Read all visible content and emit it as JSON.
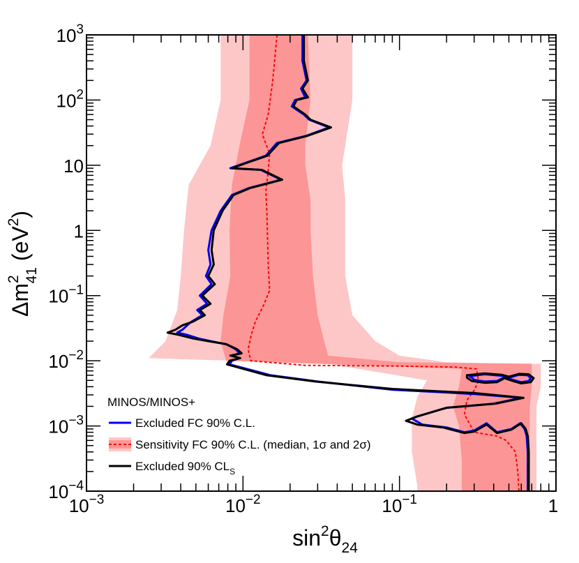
{
  "chart_data": {
    "type": "line",
    "x_scale": "log",
    "y_scale": "log",
    "xlim": [
      0.001,
      1
    ],
    "ylim": [
      0.0001,
      1000
    ],
    "xlabel": {
      "base": "sin",
      "sup": "2",
      "mid": "θ",
      "sub": "24"
    },
    "ylabel": {
      "pre": "Δm",
      "sup": "2",
      "sub": "41",
      "post1": " (eV",
      "sup2": "2",
      "post2": ")"
    },
    "x_ticks": [
      {
        "value": 0.001,
        "base": "10",
        "exp": "−3"
      },
      {
        "value": 0.01,
        "base": "10",
        "exp": "−2"
      },
      {
        "value": 0.1,
        "base": "10",
        "exp": "−1"
      },
      {
        "value": 1,
        "base": "1",
        "exp": ""
      }
    ],
    "y_ticks": [
      {
        "value": 0.0001,
        "base": "10",
        "exp": "−4"
      },
      {
        "value": 0.001,
        "base": "10",
        "exp": "−3"
      },
      {
        "value": 0.01,
        "base": "10",
        "exp": "−2"
      },
      {
        "value": 0.1,
        "base": "10",
        "exp": "−1"
      },
      {
        "value": 1,
        "base": "1",
        "exp": ""
      },
      {
        "value": 10,
        "base": "10",
        "exp": ""
      },
      {
        "value": 100,
        "base": "10",
        "exp": "2"
      },
      {
        "value": 1000,
        "base": "10",
        "exp": "3"
      }
    ],
    "colors": {
      "band2": "#fdc7c7",
      "band1": "#fc9595",
      "median": "#ff0000",
      "fc": "#0000ee",
      "cls": "#000000"
    },
    "legend": {
      "title": "MINOS/MINOS+",
      "entries": [
        {
          "key": "fc",
          "label": "Excluded FC 90% C.L."
        },
        {
          "key": "sens",
          "label": "Sensitivity FC 90% C.L. (median, 1σ and 2σ)"
        },
        {
          "key": "cls",
          "label": "Excluded 90% CL",
          "sub": "S"
        }
      ]
    },
    "series": [
      {
        "name": "Sensitivity 2σ band",
        "type": "band",
        "color_key": "band2",
        "lower": [
          [
            0.0072,
            1000
          ],
          [
            0.0072,
            100
          ],
          [
            0.0062,
            20
          ],
          [
            0.0045,
            5
          ],
          [
            0.0042,
            1
          ],
          [
            0.004,
            0.2
          ],
          [
            0.0038,
            0.06
          ],
          [
            0.0032,
            0.02
          ],
          [
            0.0025,
            0.011
          ],
          [
            0.035,
            0.009
          ],
          [
            0.15,
            0.005
          ],
          [
            0.13,
            0.0028
          ],
          [
            0.12,
            0.0013
          ],
          [
            0.12,
            0.0004
          ],
          [
            0.13,
            0.00012
          ],
          [
            0.13,
            0.0001
          ]
        ],
        "upper": [
          [
            0.05,
            1000
          ],
          [
            0.05,
            100
          ],
          [
            0.045,
            20
          ],
          [
            0.043,
            10
          ],
          [
            0.045,
            3
          ],
          [
            0.045,
            1
          ],
          [
            0.045,
            0.2
          ],
          [
            0.05,
            0.05
          ],
          [
            0.07,
            0.02
          ],
          [
            0.1,
            0.012
          ],
          [
            0.2,
            0.0095
          ],
          [
            0.5,
            0.009
          ],
          [
            0.8,
            0.009
          ],
          [
            0.8,
            0.004
          ],
          [
            0.75,
            0.002
          ],
          [
            0.75,
            0.0005
          ],
          [
            0.75,
            0.0001
          ]
        ]
      },
      {
        "name": "Sensitivity 1σ band",
        "type": "band",
        "color_key": "band1",
        "lower": [
          [
            0.011,
            1000
          ],
          [
            0.011,
            100
          ],
          [
            0.0095,
            20
          ],
          [
            0.0085,
            5
          ],
          [
            0.0082,
            1
          ],
          [
            0.0083,
            0.2
          ],
          [
            0.0075,
            0.05
          ],
          [
            0.0072,
            0.02
          ],
          [
            0.0078,
            0.01
          ],
          [
            0.06,
            0.0085
          ],
          [
            0.25,
            0.0075
          ],
          [
            0.24,
            0.004
          ],
          [
            0.22,
            0.002
          ],
          [
            0.24,
            0.001
          ],
          [
            0.25,
            0.0003
          ],
          [
            0.25,
            0.0001
          ]
        ],
        "upper": [
          [
            0.026,
            1000
          ],
          [
            0.027,
            100
          ],
          [
            0.025,
            20
          ],
          [
            0.025,
            10
          ],
          [
            0.027,
            3
          ],
          [
            0.027,
            1
          ],
          [
            0.028,
            0.2
          ],
          [
            0.03,
            0.05
          ],
          [
            0.033,
            0.02
          ],
          [
            0.035,
            0.012
          ],
          [
            0.1,
            0.0095
          ],
          [
            0.7,
            0.009
          ],
          [
            0.7,
            0.004
          ],
          [
            0.68,
            0.002
          ],
          [
            0.68,
            0.0005
          ],
          [
            0.68,
            0.0001
          ]
        ]
      },
      {
        "name": "Sensitivity median",
        "type": "dashed",
        "color_key": "median",
        "points": [
          [
            0.0165,
            1000
          ],
          [
            0.0155,
            200
          ],
          [
            0.0145,
            60
          ],
          [
            0.0133,
            30
          ],
          [
            0.0148,
            15
          ],
          [
            0.0145,
            8
          ],
          [
            0.014,
            4
          ],
          [
            0.0142,
            2
          ],
          [
            0.0143,
            1
          ],
          [
            0.0145,
            0.3
          ],
          [
            0.0148,
            0.12
          ],
          [
            0.0135,
            0.07
          ],
          [
            0.012,
            0.04
          ],
          [
            0.0113,
            0.025
          ],
          [
            0.0108,
            0.015
          ],
          [
            0.0112,
            0.01
          ],
          [
            0.025,
            0.0085
          ],
          [
            0.1,
            0.0083
          ],
          [
            0.23,
            0.008
          ],
          [
            0.31,
            0.0075
          ],
          [
            0.32,
            0.005
          ],
          [
            0.3,
            0.0035
          ],
          [
            0.27,
            0.0025
          ],
          [
            0.26,
            0.0015
          ],
          [
            0.3,
            0.0008
          ],
          [
            0.42,
            0.0007
          ],
          [
            0.48,
            0.0006
          ],
          [
            0.55,
            0.0004
          ],
          [
            0.57,
            0.0002
          ],
          [
            0.58,
            0.0001
          ]
        ]
      },
      {
        "name": "Excluded FC 90% C.L.",
        "type": "line",
        "color_key": "fc",
        "points": [
          [
            0.024,
            1000
          ],
          [
            0.024,
            400
          ],
          [
            0.0255,
            200
          ],
          [
            0.0235,
            150
          ],
          [
            0.025,
            110
          ],
          [
            0.0215,
            100
          ],
          [
            0.0205,
            80
          ],
          [
            0.0245,
            60
          ],
          [
            0.0265,
            50
          ],
          [
            0.0355,
            38
          ],
          [
            0.025,
            28
          ],
          [
            0.0165,
            22
          ],
          [
            0.014,
            14
          ],
          [
            0.0105,
            11
          ],
          [
            0.0083,
            9
          ],
          [
            0.013,
            8.5
          ],
          [
            0.0175,
            6
          ],
          [
            0.011,
            4.5
          ],
          [
            0.0085,
            3.5
          ],
          [
            0.0072,
            2
          ],
          [
            0.0063,
            1
          ],
          [
            0.006,
            0.5
          ],
          [
            0.0062,
            0.3
          ],
          [
            0.0058,
            0.2
          ],
          [
            0.0063,
            0.15
          ],
          [
            0.0053,
            0.1
          ],
          [
            0.0059,
            0.075
          ],
          [
            0.0051,
            0.06
          ],
          [
            0.0055,
            0.05
          ],
          [
            0.0047,
            0.04
          ],
          [
            0.0044,
            0.035
          ],
          [
            0.0041,
            0.03
          ],
          [
            0.0038,
            0.027
          ],
          [
            0.0044,
            0.025
          ],
          [
            0.0052,
            0.022
          ],
          [
            0.0062,
            0.02
          ],
          [
            0.0078,
            0.018
          ],
          [
            0.009,
            0.015
          ],
          [
            0.0095,
            0.013
          ],
          [
            0.0085,
            0.012
          ],
          [
            0.0095,
            0.011
          ],
          [
            0.0085,
            0.01
          ],
          [
            0.0082,
            0.0088
          ],
          [
            0.015,
            0.006
          ],
          [
            0.03,
            0.0048
          ],
          [
            0.09,
            0.0036
          ],
          [
            0.3,
            0.0031
          ],
          [
            0.6,
            0.0027
          ],
          [
            0.4,
            0.0022
          ],
          [
            0.2,
            0.0019
          ],
          [
            0.13,
            0.0014
          ],
          [
            0.12,
            0.0013
          ],
          [
            0.14,
            0.00105
          ],
          [
            0.2,
            0.00095
          ],
          [
            0.26,
            0.0008
          ],
          [
            0.3,
            0.00085
          ],
          [
            0.36,
            0.0011
          ],
          [
            0.42,
            0.0008
          ],
          [
            0.52,
            0.0009
          ],
          [
            0.59,
            0.0011
          ],
          [
            0.63,
            0.0009
          ],
          [
            0.65,
            0.0007
          ],
          [
            0.66,
            0.0004
          ],
          [
            0.66,
            0.0001
          ]
        ]
      },
      {
        "name": "Excluded 90% CLs",
        "type": "line",
        "color_key": "cls",
        "points": [
          [
            0.0245,
            1000
          ],
          [
            0.0245,
            400
          ],
          [
            0.026,
            200
          ],
          [
            0.024,
            150
          ],
          [
            0.026,
            110
          ],
          [
            0.022,
            100
          ],
          [
            0.021,
            80
          ],
          [
            0.025,
            60
          ],
          [
            0.027,
            50
          ],
          [
            0.0365,
            38
          ],
          [
            0.0255,
            28
          ],
          [
            0.017,
            22
          ],
          [
            0.0143,
            14
          ],
          [
            0.0107,
            11
          ],
          [
            0.0085,
            9
          ],
          [
            0.0132,
            8.5
          ],
          [
            0.0178,
            6
          ],
          [
            0.0112,
            4.5
          ],
          [
            0.0087,
            3.5
          ],
          [
            0.0074,
            2
          ],
          [
            0.0065,
            1
          ],
          [
            0.0063,
            0.5
          ],
          [
            0.0065,
            0.3
          ],
          [
            0.006,
            0.2
          ],
          [
            0.0066,
            0.15
          ],
          [
            0.0055,
            0.1
          ],
          [
            0.0062,
            0.075
          ],
          [
            0.0053,
            0.06
          ],
          [
            0.0057,
            0.05
          ],
          [
            0.0048,
            0.04
          ],
          [
            0.0041,
            0.035
          ],
          [
            0.0037,
            0.03
          ],
          [
            0.0033,
            0.027
          ],
          [
            0.0039,
            0.025
          ],
          [
            0.0048,
            0.022
          ],
          [
            0.006,
            0.02
          ],
          [
            0.0078,
            0.018
          ],
          [
            0.0092,
            0.015
          ],
          [
            0.0098,
            0.013
          ],
          [
            0.0083,
            0.012
          ],
          [
            0.0096,
            0.011
          ],
          [
            0.0082,
            0.01
          ],
          [
            0.0079,
            0.0088
          ],
          [
            0.0142,
            0.006
          ],
          [
            0.029,
            0.0048
          ],
          [
            0.09,
            0.0037
          ],
          [
            0.3,
            0.0032
          ],
          [
            0.62,
            0.0027
          ],
          [
            0.41,
            0.0022
          ],
          [
            0.2,
            0.0019
          ],
          [
            0.13,
            0.0014
          ],
          [
            0.11,
            0.0012
          ],
          [
            0.13,
            0.00105
          ],
          [
            0.19,
            0.00095
          ],
          [
            0.26,
            0.00078
          ],
          [
            0.3,
            0.00082
          ],
          [
            0.36,
            0.00105
          ],
          [
            0.42,
            0.00078
          ],
          [
            0.52,
            0.00088
          ],
          [
            0.6,
            0.0011
          ],
          [
            0.64,
            0.0009
          ],
          [
            0.66,
            0.0007
          ],
          [
            0.67,
            0.0004
          ],
          [
            0.67,
            0.0001
          ]
        ]
      },
      {
        "name": "Excluded FC island",
        "type": "closed",
        "color_key": "fc",
        "points": [
          [
            0.28,
            0.0058
          ],
          [
            0.35,
            0.0062
          ],
          [
            0.45,
            0.0059
          ],
          [
            0.5,
            0.0055
          ],
          [
            0.58,
            0.0061
          ],
          [
            0.66,
            0.006
          ],
          [
            0.69,
            0.0054
          ],
          [
            0.67,
            0.0049
          ],
          [
            0.6,
            0.0047
          ],
          [
            0.53,
            0.0051
          ],
          [
            0.47,
            0.0056
          ],
          [
            0.42,
            0.0049
          ],
          [
            0.35,
            0.0048
          ],
          [
            0.3,
            0.0051
          ],
          [
            0.29,
            0.0055
          ]
        ]
      },
      {
        "name": "Excluded CLs island",
        "type": "closed",
        "color_key": "cls",
        "points": [
          [
            0.27,
            0.006
          ],
          [
            0.35,
            0.0064
          ],
          [
            0.45,
            0.0061
          ],
          [
            0.5,
            0.0057
          ],
          [
            0.58,
            0.0063
          ],
          [
            0.67,
            0.0062
          ],
          [
            0.72,
            0.0054
          ],
          [
            0.69,
            0.0047
          ],
          [
            0.6,
            0.0045
          ],
          [
            0.53,
            0.0049
          ],
          [
            0.47,
            0.0054
          ],
          [
            0.42,
            0.0047
          ],
          [
            0.35,
            0.0046
          ],
          [
            0.29,
            0.0049
          ],
          [
            0.27,
            0.0055
          ]
        ]
      }
    ]
  }
}
